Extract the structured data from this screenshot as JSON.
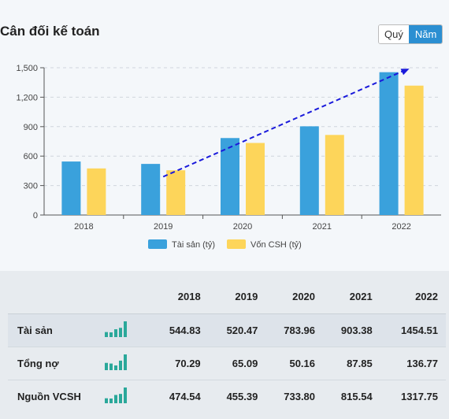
{
  "header": {
    "title": "Cân đối kế toán",
    "toggle": [
      {
        "label": "Quý"
      },
      {
        "label": "Năm"
      }
    ]
  },
  "chart_data": {
    "type": "bar",
    "categories": [
      "2018",
      "2019",
      "2020",
      "2021",
      "2022"
    ],
    "series": [
      {
        "name": "Tài sản (tỷ)",
        "values": [
          544.83,
          520.47,
          783.96,
          903.38,
          1454.51
        ],
        "color": "#3aa1dc"
      },
      {
        "name": "Vốn CSH (tỷ)",
        "values": [
          474.54,
          455.39,
          733.8,
          815.54,
          1317.75
        ],
        "color": "#fdd55a"
      }
    ],
    "yticks": [
      "0",
      "300",
      "600",
      "900",
      "1,200",
      "1,500"
    ],
    "ylim": [
      0,
      1500
    ],
    "grid": true,
    "legend": "bottom",
    "trend_arrow": {
      "from": {
        "x": "2019",
        "y": 390
      },
      "to": {
        "x": "2022",
        "y": 1490
      },
      "color": "#1a1adb",
      "style": "dashed"
    }
  },
  "table": {
    "years": [
      "2018",
      "2019",
      "2020",
      "2021",
      "2022"
    ],
    "rows": [
      {
        "label": "Tài sản",
        "values": [
          "544.83",
          "520.47",
          "783.96",
          "903.38",
          "1454.51"
        ]
      },
      {
        "label": "Tổng nợ",
        "values": [
          "70.29",
          "65.09",
          "50.16",
          "87.85",
          "136.77"
        ]
      },
      {
        "label": "Nguồn VCSH",
        "values": [
          "474.54",
          "455.39",
          "733.80",
          "815.54",
          "1317.75"
        ]
      }
    ],
    "spark_color": "#2aa89a"
  }
}
